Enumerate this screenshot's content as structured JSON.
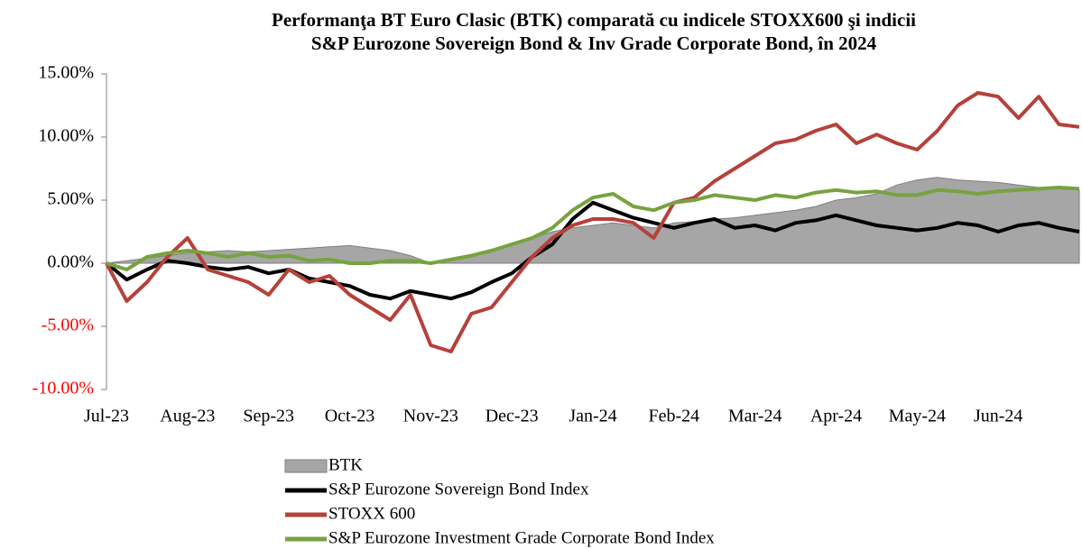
{
  "chart_data": {
    "type": "line",
    "title": [
      "Performanţa BT Euro Clasic (BTK) comparată cu indicele STOXX600 şi indicii",
      "S&P Eurozone Sovereign Bond & Inv Grade Corporate Bond, în 2024"
    ],
    "categories": [
      "Jul-23",
      null,
      null,
      null,
      "Aug-23",
      null,
      null,
      null,
      "Sep-23",
      null,
      null,
      null,
      "Oct-23",
      null,
      null,
      null,
      "Nov-23",
      null,
      null,
      null,
      "Dec-23",
      null,
      null,
      null,
      "Jan-24",
      null,
      null,
      null,
      "Feb-24",
      null,
      null,
      null,
      "Mar-24",
      null,
      null,
      null,
      "Apr-24",
      null,
      null,
      null,
      "May-24",
      null,
      null,
      null,
      "Jun-24",
      null,
      null,
      null,
      null
    ],
    "series": [
      {
        "name": "BTK",
        "kind": "area",
        "color": "#a6a6a6",
        "values": [
          0,
          0.2,
          0.4,
          0.6,
          0.8,
          0.9,
          1.0,
          0.9,
          1.0,
          1.1,
          1.2,
          1.3,
          1.4,
          1.2,
          1.0,
          0.6,
          0,
          0.2,
          0.5,
          1.0,
          1.5,
          2.0,
          2.5,
          2.8,
          3.0,
          3.2,
          3.0,
          2.8,
          3.2,
          3.3,
          3.5,
          3.6,
          3.8,
          4.0,
          4.2,
          4.5,
          5.0,
          5.2,
          5.5,
          6.2,
          6.6,
          6.8,
          6.6,
          6.5,
          6.4,
          6.2,
          6.0,
          5.9,
          5.8
        ]
      },
      {
        "name": "S&P Eurozone Sovereign Bond Index",
        "kind": "line",
        "color": "#000000",
        "values": [
          0,
          -1.3,
          -0.5,
          0.2,
          0,
          -0.3,
          -0.5,
          -0.3,
          -0.8,
          -0.5,
          -1.2,
          -1.5,
          -1.8,
          -2.5,
          -2.8,
          -2.2,
          -2.5,
          -2.8,
          -2.3,
          -1.5,
          -0.8,
          0.5,
          1.5,
          3.5,
          4.8,
          4.2,
          3.6,
          3.2,
          2.8,
          3.2,
          3.5,
          2.8,
          3.0,
          2.6,
          3.2,
          3.4,
          3.8,
          3.4,
          3.0,
          2.8,
          2.6,
          2.8,
          3.2,
          3.0,
          2.5,
          3.0,
          3.2,
          2.8,
          2.5
        ]
      },
      {
        "name": "STOXX 600",
        "kind": "line",
        "color": "#b5413a",
        "values": [
          0,
          -3,
          -1.5,
          0.5,
          2,
          -0.5,
          -1,
          -1.5,
          -2.5,
          -0.5,
          -1.5,
          -1,
          -2.5,
          -3.5,
          -4.5,
          -2.5,
          -6.5,
          -7,
          -4,
          -3.5,
          -1.5,
          0.5,
          2,
          3,
          3.5,
          3.5,
          3.2,
          2.0,
          4.8,
          5.2,
          6.5,
          7.5,
          8.5,
          9.5,
          9.8,
          10.5,
          11,
          9.5,
          10.2,
          9.5,
          9,
          10.5,
          12.5,
          13.5,
          13.2,
          11.5,
          13.2,
          11,
          10.8
        ]
      },
      {
        "name": "S&P Eurozone Investment Grade Corporate Bond Index",
        "kind": "line",
        "color": "#77a33f",
        "values": [
          0,
          -0.5,
          0.5,
          0.8,
          1,
          0.8,
          0.5,
          0.8,
          0.5,
          0.6,
          0.2,
          0.3,
          0,
          0,
          0.2,
          0.2,
          0,
          0.3,
          0.6,
          1.0,
          1.5,
          2.0,
          2.8,
          4.2,
          5.2,
          5.5,
          4.5,
          4.2,
          4.8,
          5.0,
          5.4,
          5.2,
          5.0,
          5.4,
          5.2,
          5.6,
          5.8,
          5.6,
          5.7,
          5.4,
          5.4,
          5.8,
          5.7,
          5.5,
          5.7,
          5.8,
          5.9,
          6.0,
          5.9
        ]
      }
    ],
    "ylim": [
      -10,
      15
    ],
    "yticks": [
      {
        "value": -10,
        "label": "-10.00%"
      },
      {
        "value": -5,
        "label": "-5.00%"
      },
      {
        "value": 0,
        "label": "0.00%"
      },
      {
        "value": 5,
        "label": "5.00%"
      },
      {
        "value": 10,
        "label": "10.00%"
      },
      {
        "value": 15,
        "label": "15.00%"
      }
    ],
    "negative_tick_color": "#ff0000",
    "legend": "bottom"
  }
}
